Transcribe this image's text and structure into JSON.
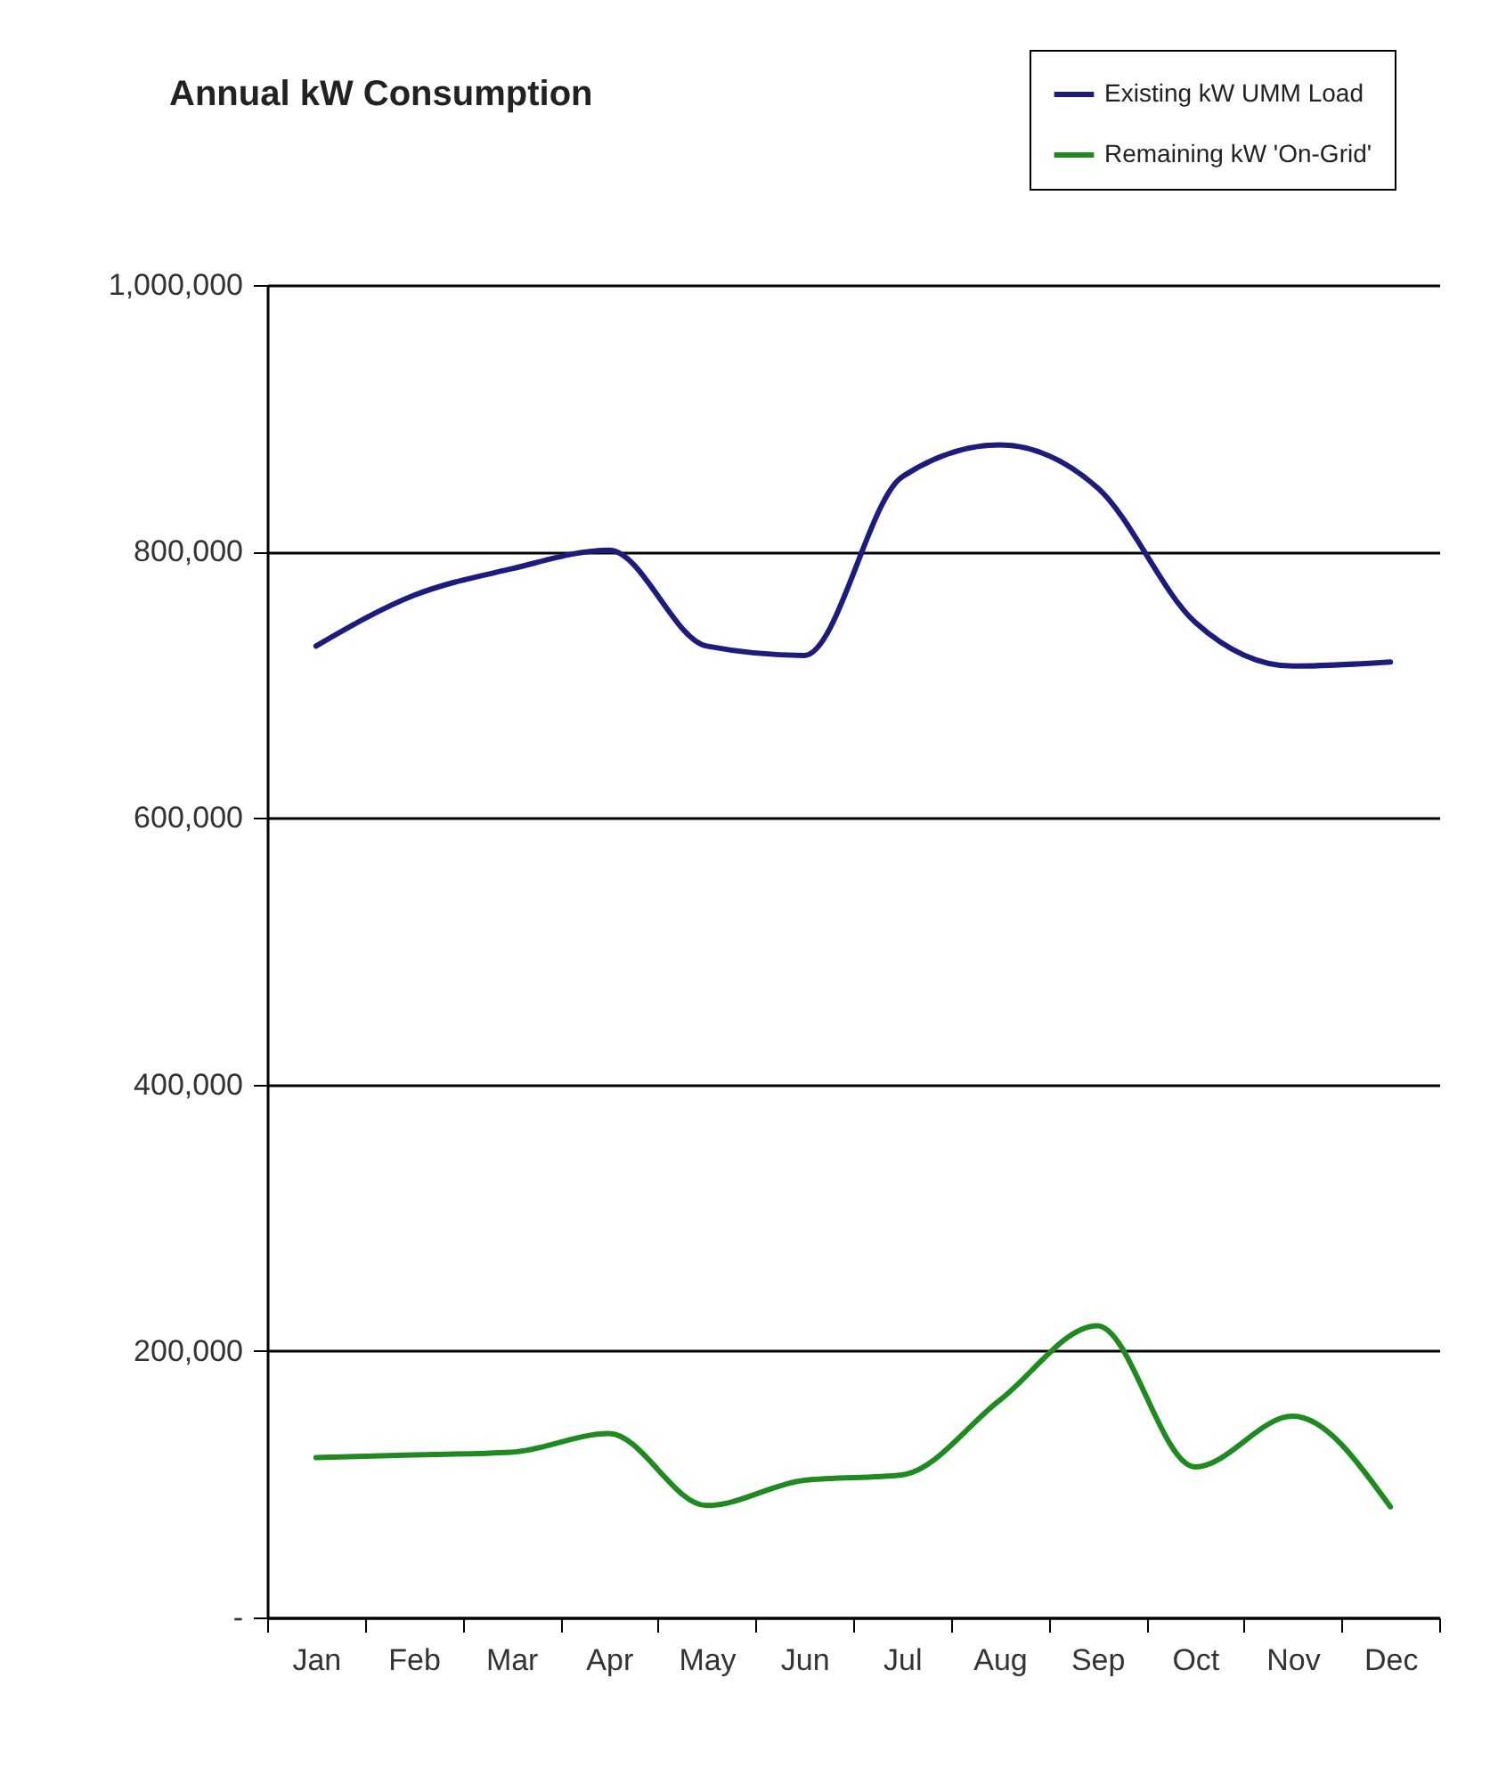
{
  "chart_data": {
    "type": "line",
    "title": "Annual kW Consumption",
    "categories": [
      "Jan",
      "Feb",
      "Mar",
      "Apr",
      "May",
      "Jun",
      "Jul",
      "Aug",
      "Sep",
      "Oct",
      "Nov",
      "Dec"
    ],
    "series": [
      {
        "name": "Existing kW UMM Load",
        "color": "#1c1c7e",
        "values": [
          729000,
          767000,
          787000,
          801000,
          729000,
          722000,
          856000,
          880000,
          848000,
          747000,
          714000,
          717000
        ]
      },
      {
        "name": "Remaining kW 'On-Grid'",
        "color": "#1f8a1f",
        "values": [
          120000,
          122000,
          124000,
          138000,
          84000,
          103000,
          107000,
          163000,
          219000,
          113000,
          151000,
          83000
        ]
      }
    ],
    "ylim": [
      0,
      1000000
    ],
    "yticks": [
      {
        "value": 0,
        "label": "-"
      },
      {
        "value": 200000,
        "label": "200,000"
      },
      {
        "value": 400000,
        "label": "400,000"
      },
      {
        "value": 600000,
        "label": "600,000"
      },
      {
        "value": 800000,
        "label": "800,000"
      },
      {
        "value": 1000000,
        "label": "1,000,000"
      }
    ],
    "grid": "y",
    "legend": "top right",
    "marker": "none",
    "line_style": "solid"
  }
}
